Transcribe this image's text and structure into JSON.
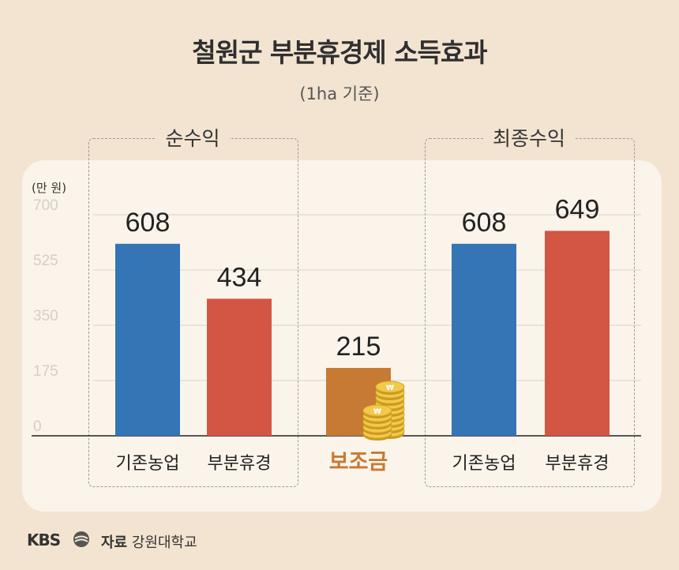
{
  "title": "철원군 부분휴경제 소득효과",
  "subtitle": "(1ha 기준)",
  "groups": [
    {
      "label": "순수익"
    },
    {
      "label": "최종수익"
    }
  ],
  "footer": {
    "logo": "KBS",
    "source_label": "자료",
    "source": "강원대학교"
  },
  "colors": {
    "blue": "#3574b5",
    "red": "#d35543",
    "subsidy": "#c67a33",
    "subsidy_label": "#c67a33"
  },
  "chart_data": {
    "type": "bar",
    "unit": "(만 원)",
    "ylim": [
      0,
      700
    ],
    "yticks": [
      "0",
      "175",
      "350",
      "525",
      "700"
    ],
    "grid": true,
    "bars": [
      {
        "group": "순수익",
        "label": "기존농업",
        "value": 608,
        "color": "#3574b5"
      },
      {
        "group": "순수익",
        "label": "부분휴경",
        "value": 434,
        "color": "#d35543"
      },
      {
        "group": "",
        "label": "보조금",
        "value": 215,
        "color": "#c67a33"
      },
      {
        "group": "최종수익",
        "label": "기존농업",
        "value": 608,
        "color": "#3574b5"
      },
      {
        "group": "최종수익",
        "label": "부분휴경",
        "value": 649,
        "color": "#d35543"
      }
    ]
  }
}
